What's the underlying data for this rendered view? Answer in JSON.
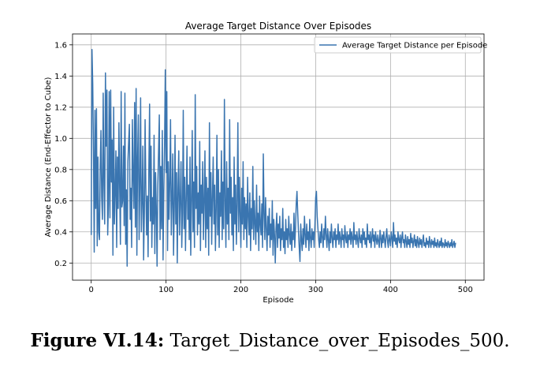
{
  "figure": {
    "caption_label": "Figure VI.14:",
    "caption_text": "Target_Distance_over_Episodes_500."
  },
  "chart_data": {
    "type": "line",
    "title": "Average Target Distance Over Episodes",
    "xlabel": "Episode",
    "ylabel": "Average Distance (End-Effector to Cube)",
    "xlim": [
      -25,
      525
    ],
    "ylim": [
      0.09,
      1.67
    ],
    "x_ticks": [
      0,
      100,
      200,
      300,
      400,
      500
    ],
    "y_ticks": [
      0.2,
      0.4,
      0.6,
      0.8,
      1.0,
      1.2,
      1.4,
      1.6
    ],
    "y_tick_labels": [
      "0.2",
      "0.4",
      "0.6",
      "0.8",
      "1.0",
      "1.2",
      "1.4",
      "1.6"
    ],
    "grid": true,
    "legend_position": "upper-right",
    "line_color": "#3a75b0",
    "series": [
      {
        "name": "Average Target Distance per Episode",
        "x_start": 0,
        "x_step": 1,
        "values": [
          0.38,
          1.57,
          1.35,
          0.92,
          0.27,
          1.18,
          0.55,
          1.19,
          0.31,
          0.88,
          0.4,
          0.35,
          0.82,
          1.05,
          0.62,
          0.48,
          1.29,
          0.7,
          0.45,
          1.42,
          0.95,
          1.31,
          0.38,
          0.58,
          1.3,
          0.49,
          1.31,
          0.72,
          0.99,
          0.25,
          1.2,
          0.45,
          0.66,
          0.92,
          0.3,
          0.88,
          0.55,
          1.1,
          0.68,
          0.32,
          1.3,
          0.56,
          0.6,
          0.95,
          0.44,
          1.29,
          0.32,
          0.67,
          0.18,
          0.85,
          0.98,
          1.09,
          0.48,
          0.68,
          0.3,
          1.12,
          0.75,
          0.55,
          1.23,
          0.43,
          1.32,
          0.25,
          0.88,
          1.15,
          0.35,
          0.7,
          1.26,
          0.4,
          0.6,
          0.95,
          0.22,
          0.52,
          1.12,
          0.68,
          0.38,
          0.63,
          0.24,
          0.8,
          1.22,
          0.47,
          0.95,
          0.3,
          0.62,
          0.45,
          1.02,
          0.26,
          0.78,
          0.55,
          0.18,
          0.7,
          0.92,
          1.15,
          0.35,
          0.82,
          0.42,
          1.05,
          0.22,
          0.65,
          0.95,
          1.44,
          0.78,
          1.3,
          0.28,
          0.85,
          0.48,
          0.72,
          1.12,
          0.38,
          0.6,
          0.9,
          0.25,
          0.55,
          1.02,
          0.45,
          0.78,
          0.2,
          0.68,
          0.92,
          0.38,
          0.6,
          0.85,
          0.3,
          0.52,
          1.18,
          0.42,
          0.75,
          0.28,
          0.62,
          0.95,
          0.48,
          0.7,
          0.35,
          0.88,
          0.25,
          0.6,
          1.05,
          0.4,
          0.72,
          0.3,
          1.28,
          0.55,
          0.82,
          0.38,
          0.65,
          0.45,
          0.98,
          0.28,
          0.7,
          0.52,
          0.85,
          0.35,
          0.6,
          0.92,
          0.3,
          0.75,
          0.42,
          0.68,
          0.25,
          1.1,
          0.5,
          0.78,
          0.32,
          0.62,
          0.88,
          0.45,
          0.7,
          0.28,
          0.55,
          1.02,
          0.38,
          0.8,
          0.3,
          0.65,
          0.5,
          0.92,
          0.35,
          0.72,
          0.42,
          1.25,
          0.58,
          0.3,
          0.85,
          0.45,
          0.68,
          0.35,
          1.12,
          0.52,
          0.75,
          0.38,
          0.62,
          0.28,
          0.88,
          0.45,
          0.7,
          0.32,
          0.58,
          1.1,
          0.4,
          0.75,
          0.52,
          0.3,
          0.68,
          0.45,
          0.85,
          0.35,
          0.62,
          0.42,
          0.58,
          0.3,
          0.75,
          0.5,
          0.38,
          0.65,
          0.28,
          0.55,
          0.42,
          0.82,
          0.35,
          0.6,
          0.45,
          0.32,
          0.7,
          0.4,
          0.52,
          0.28,
          0.63,
          0.45,
          0.38,
          0.58,
          0.3,
          0.9,
          0.52,
          0.35,
          0.62,
          0.42,
          0.28,
          0.5,
          0.38,
          0.55,
          0.3,
          0.45,
          0.35,
          0.6,
          0.25,
          0.48,
          0.38,
          0.2,
          0.42,
          0.52,
          0.3,
          0.45,
          0.36,
          0.5,
          0.28,
          0.42,
          0.35,
          0.55,
          0.3,
          0.4,
          0.26,
          0.48,
          0.35,
          0.42,
          0.3,
          0.5,
          0.38,
          0.32,
          0.45,
          0.28,
          0.4,
          0.35,
          0.52,
          0.3,
          0.42,
          0.58,
          0.66,
          0.52,
          0.4,
          0.3,
          0.21,
          0.45,
          0.35,
          0.28,
          0.42,
          0.32,
          0.5,
          0.38,
          0.3,
          0.45,
          0.35,
          0.4,
          0.28,
          0.48,
          0.36,
          0.3,
          0.42,
          0.35,
          0.4,
          0.3,
          0.45,
          0.62,
          0.66,
          0.5,
          0.42,
          0.35,
          0.3,
          0.4,
          0.33,
          0.45,
          0.36,
          0.3,
          0.42,
          0.35,
          0.5,
          0.38,
          0.3,
          0.42,
          0.35,
          0.28,
          0.4,
          0.33,
          0.45,
          0.36,
          0.3,
          0.4,
          0.35,
          0.42,
          0.3,
          0.38,
          0.35,
          0.45,
          0.32,
          0.4,
          0.36,
          0.3,
          0.42,
          0.35,
          0.38,
          0.3,
          0.44,
          0.36,
          0.33,
          0.4,
          0.3,
          0.38,
          0.35,
          0.42,
          0.32,
          0.4,
          0.36,
          0.3,
          0.46,
          0.35,
          0.38,
          0.32,
          0.4,
          0.35,
          0.3,
          0.42,
          0.36,
          0.33,
          0.38,
          0.3,
          0.42,
          0.35,
          0.4,
          0.32,
          0.36,
          0.3,
          0.45,
          0.35,
          0.38,
          0.33,
          0.4,
          0.3,
          0.36,
          0.42,
          0.34,
          0.38,
          0.3,
          0.4,
          0.35,
          0.32,
          0.38,
          0.34,
          0.3,
          0.41,
          0.36,
          0.3,
          0.38,
          0.33,
          0.4,
          0.35,
          0.3,
          0.37,
          0.42,
          0.34,
          0.3,
          0.38,
          0.35,
          0.31,
          0.4,
          0.36,
          0.3,
          0.46,
          0.34,
          0.38,
          0.32,
          0.36,
          0.3,
          0.4,
          0.35,
          0.33,
          0.38,
          0.3,
          0.36,
          0.4,
          0.33,
          0.35,
          0.3,
          0.38,
          0.34,
          0.3,
          0.37,
          0.32,
          0.35,
          0.3,
          0.39,
          0.33,
          0.36,
          0.3,
          0.34,
          0.38,
          0.31,
          0.35,
          0.3,
          0.37,
          0.33,
          0.3,
          0.36,
          0.32,
          0.35,
          0.3,
          0.34,
          0.38,
          0.31,
          0.33,
          0.3,
          0.36,
          0.32,
          0.34,
          0.3,
          0.37,
          0.33,
          0.3,
          0.35,
          0.32,
          0.34,
          0.3,
          0.36,
          0.31,
          0.33,
          0.3,
          0.35,
          0.32,
          0.3,
          0.34,
          0.31,
          0.36,
          0.3,
          0.33,
          0.32,
          0.3,
          0.35,
          0.31,
          0.33,
          0.3,
          0.34,
          0.32,
          0.3,
          0.33,
          0.31,
          0.35,
          0.3,
          0.32,
          0.34,
          0.3,
          0.33
        ]
      }
    ]
  }
}
